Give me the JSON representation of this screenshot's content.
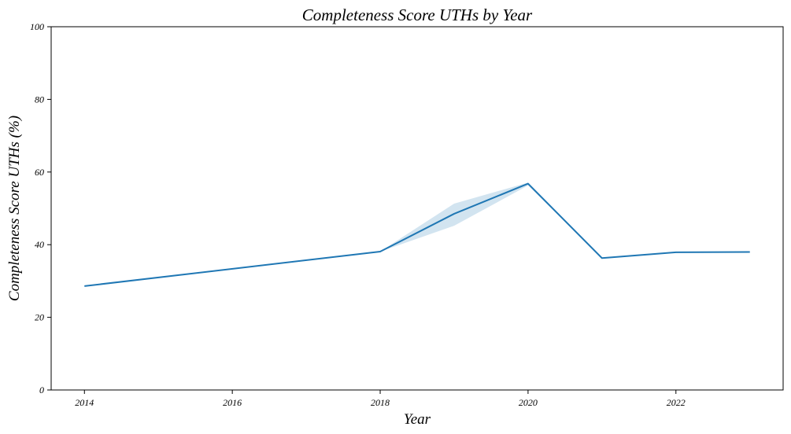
{
  "chart_data": {
    "type": "line",
    "title": "Completeness Score UTHs by Year",
    "xlabel": "Year",
    "ylabel": "Completeness Score UTHs (%)",
    "xlim": [
      2013.55,
      2023.45
    ],
    "ylim": [
      0,
      100
    ],
    "x_ticks": [
      2014,
      2016,
      2018,
      2020,
      2022
    ],
    "y_ticks": [
      0,
      20,
      40,
      60,
      80,
      100
    ],
    "grid": false,
    "series": [
      {
        "color": "#1f77b4",
        "band_color": "#1f77b4",
        "points": [
          {
            "x": 2014,
            "y": 28.6,
            "lo": 28.6,
            "hi": 28.6
          },
          {
            "x": 2018,
            "y": 38.1,
            "lo": 38.1,
            "hi": 38.1
          },
          {
            "x": 2019,
            "y": 48.5,
            "lo": 45.2,
            "hi": 51.3
          },
          {
            "x": 2020,
            "y": 56.8,
            "lo": 56.3,
            "hi": 57.1
          },
          {
            "x": 2021,
            "y": 36.3,
            "lo": 36.3,
            "hi": 36.3
          },
          {
            "x": 2022,
            "y": 37.9,
            "lo": 37.9,
            "hi": 37.9
          },
          {
            "x": 2023,
            "y": 38.0,
            "lo": 38.0,
            "hi": 38.0
          }
        ]
      }
    ]
  }
}
